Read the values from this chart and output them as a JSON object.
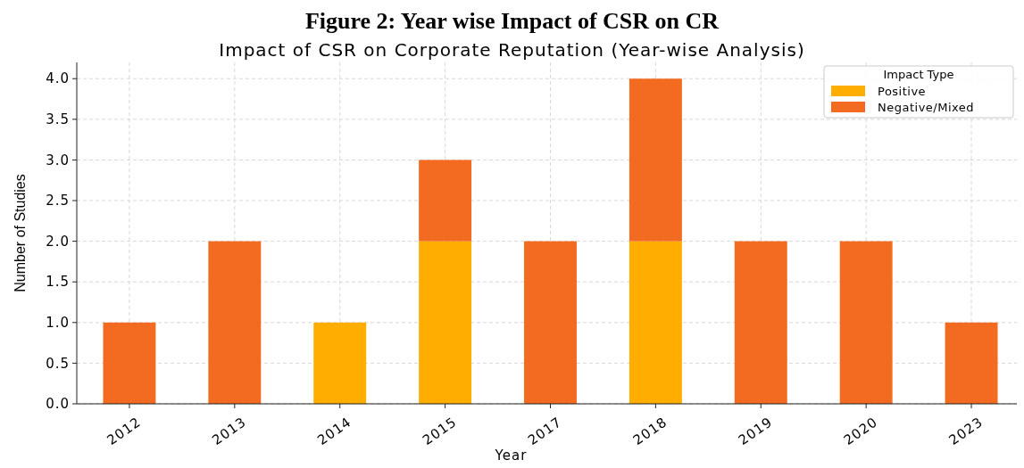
{
  "chart_data": {
    "type": "bar",
    "title": "Figure 2: Year wise Impact of CSR on CR",
    "subtitle": "Impact of CSR on Corporate Reputation (Year-wise Analysis)",
    "xlabel": "Year",
    "ylabel": "Number of Studies",
    "legend_title": "Impact Type",
    "categories": [
      "2012",
      "2013",
      "2014",
      "2015",
      "2017",
      "2018",
      "2019",
      "2020",
      "2023"
    ],
    "series": [
      {
        "name": "Positive",
        "color": "#ffad00",
        "values": [
          0,
          0,
          1,
          2,
          0,
          2,
          0,
          0,
          0
        ]
      },
      {
        "name": "Negative/Mixed",
        "color": "#f26b21",
        "values": [
          1,
          2,
          0,
          1,
          2,
          2,
          2,
          2,
          1
        ]
      }
    ],
    "stacked": true,
    "ylim": [
      0,
      4.2
    ],
    "yticks": [
      {
        "value": 0,
        "label": "0.0"
      },
      {
        "value": 0.5,
        "label": "0.5"
      },
      {
        "value": 1,
        "label": "1.0"
      },
      {
        "value": 1.5,
        "label": "1.5"
      },
      {
        "value": 2,
        "label": "2.0"
      },
      {
        "value": 2.5,
        "label": "2.5"
      },
      {
        "value": 3,
        "label": "3.0"
      },
      {
        "value": 3.5,
        "label": "3.5"
      },
      {
        "value": 4,
        "label": "4.0"
      }
    ],
    "grid": true,
    "legend": "top right"
  }
}
